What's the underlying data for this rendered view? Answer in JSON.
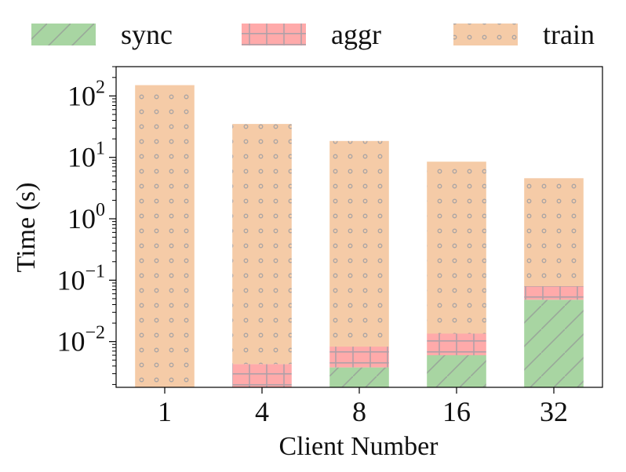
{
  "chart_data": {
    "type": "bar",
    "stacked": true,
    "yscale": "log",
    "ylim": [
      0.0018,
      300
    ],
    "xlabel": "Client Number",
    "ylabel": "Time (s)",
    "categories": [
      "1",
      "4",
      "8",
      "16",
      "32"
    ],
    "yticks": [
      {
        "base": "10",
        "exp": "−2",
        "value": 0.01
      },
      {
        "base": "10",
        "exp": "−1",
        "value": 0.1
      },
      {
        "base": "10",
        "exp": "0",
        "value": 1
      },
      {
        "base": "10",
        "exp": "1",
        "value": 10
      },
      {
        "base": "10",
        "exp": "2",
        "value": 100
      }
    ],
    "series": [
      {
        "name": "sync",
        "color": "#a8d5a2",
        "hatch": "diagonal",
        "values": [
          0,
          0,
          0.0038,
          0.006,
          0.048
        ]
      },
      {
        "name": "aggr",
        "color": "#ffaaaa",
        "hatch": "grid",
        "values": [
          0,
          0.0043,
          0.0045,
          0.0075,
          0.032
        ]
      },
      {
        "name": "train",
        "color": "#f5cba7",
        "hatch": "dots",
        "values": [
          150,
          35,
          18.5,
          8.5,
          4.5
        ]
      }
    ],
    "legend_position": "top",
    "grid": false
  }
}
